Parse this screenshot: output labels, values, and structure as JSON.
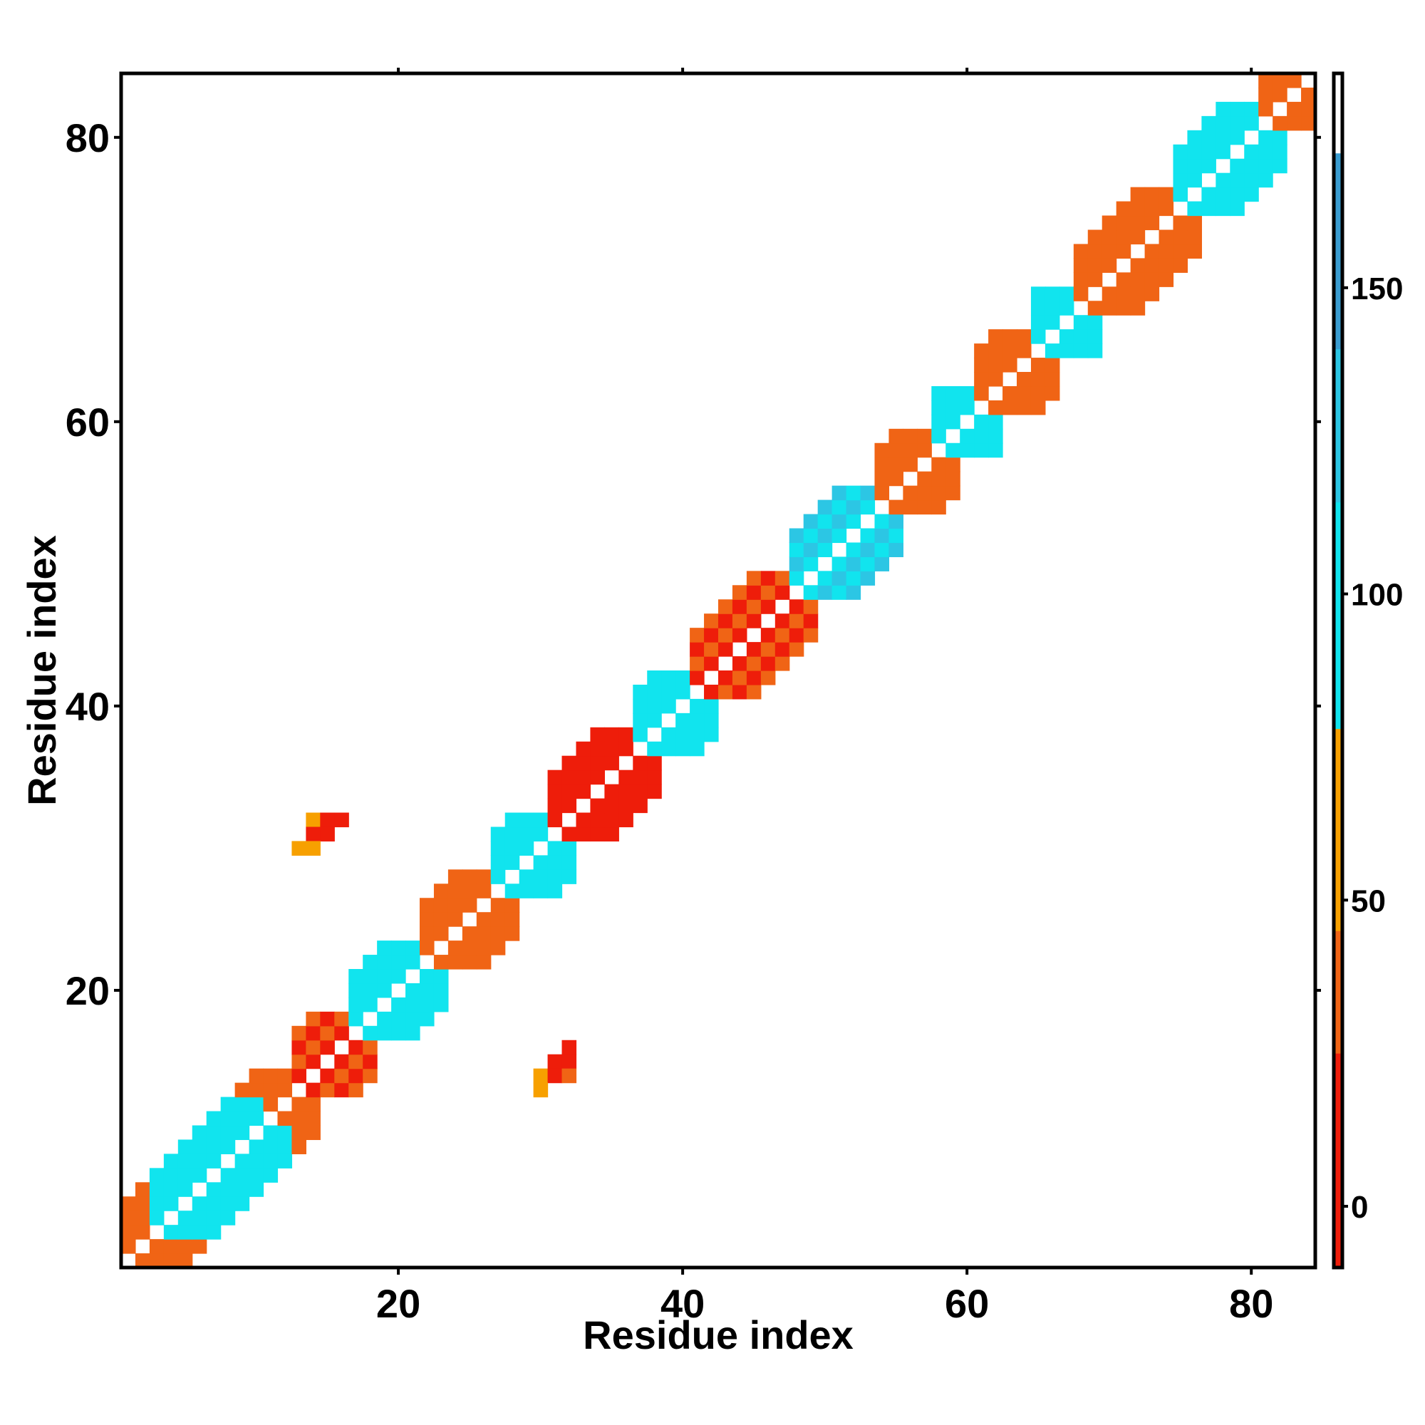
{
  "chart_data": {
    "type": "heatmap",
    "title": "",
    "xlabel": "Residue index",
    "ylabel": "Residue index",
    "xlim": [
      0.5,
      84.5
    ],
    "ylim": [
      0.5,
      84.5
    ],
    "xticks": [
      20,
      40,
      60,
      80
    ],
    "yticks": [
      20,
      40,
      60,
      80
    ],
    "grid": false,
    "colorbar": {
      "placement": "right",
      "range": [
        -10,
        185
      ],
      "ticks": [
        0,
        50,
        100,
        150
      ],
      "bands": [
        {
          "from": -10,
          "to": 25,
          "color": "#ee1d0a"
        },
        {
          "from": 25,
          "to": 45,
          "color": "#f06415"
        },
        {
          "from": 45,
          "to": 78,
          "color": "#f7a000"
        },
        {
          "from": 78,
          "to": 115,
          "color": "#11e4ee"
        },
        {
          "from": 115,
          "to": 140,
          "color": "#2cc6e4"
        },
        {
          "from": 140,
          "to": 172,
          "color": "#3a9cd0"
        },
        {
          "from": 172,
          "to": 185,
          "color": "#ffffff"
        }
      ]
    },
    "segments": [
      {
        "start": 1,
        "end": 12,
        "value": 25
      },
      {
        "start": 3,
        "end": 10,
        "value": 95
      },
      {
        "start": 13,
        "end": 16,
        "value": 20
      },
      {
        "start": 17,
        "end": 21,
        "value": 100
      },
      {
        "start": 22,
        "end": 26,
        "value": 35
      },
      {
        "start": 27,
        "end": 30,
        "value": 100
      },
      {
        "start": 31,
        "end": 36,
        "value": 12
      },
      {
        "start": 37,
        "end": 40,
        "value": 105
      },
      {
        "start": 41,
        "end": 47,
        "value": 18
      },
      {
        "start": 48,
        "end": 53,
        "value": 110
      },
      {
        "start": 54,
        "end": 57,
        "value": 35
      },
      {
        "start": 58,
        "end": 60,
        "value": 100
      },
      {
        "start": 61,
        "end": 64,
        "value": 30
      },
      {
        "start": 65,
        "end": 67,
        "value": 100
      },
      {
        "start": 68,
        "end": 74,
        "value": 35
      },
      {
        "start": 75,
        "end": 80,
        "value": 95
      },
      {
        "start": 81,
        "end": 84,
        "value": 30
      }
    ],
    "extra_cells": [
      {
        "x": 14,
        "y": 32,
        "value": 55
      },
      {
        "x": 15,
        "y": 32,
        "value": 20
      },
      {
        "x": 16,
        "y": 32,
        "value": 15
      },
      {
        "x": 14,
        "y": 31,
        "value": 15
      },
      {
        "x": 15,
        "y": 31,
        "value": 20
      },
      {
        "x": 13,
        "y": 30,
        "value": 60
      },
      {
        "x": 14,
        "y": 30,
        "value": 60
      },
      {
        "x": 32,
        "y": 16,
        "value": 15
      },
      {
        "x": 31,
        "y": 15,
        "value": 15
      },
      {
        "x": 32,
        "y": 15,
        "value": 20
      },
      {
        "x": 30,
        "y": 14,
        "value": 60
      },
      {
        "x": 31,
        "y": 14,
        "value": 20
      },
      {
        "x": 32,
        "y": 14,
        "value": 35
      },
      {
        "x": 30,
        "y": 13,
        "value": 60
      }
    ]
  }
}
